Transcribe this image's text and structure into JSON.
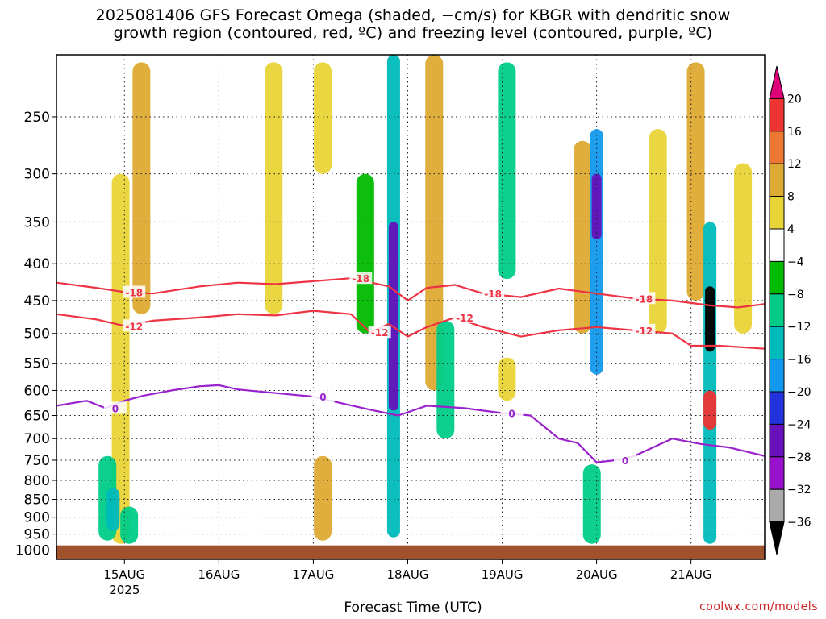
{
  "title": {
    "line1": "2025081406 GFS Forecast Omega (shaded, −cm/s) for KBGR with dendritic snow",
    "line2": "growth region (contoured, red, ºC) and freezing level (contoured, purple, ºC)"
  },
  "credit": "coolwx.com/models",
  "chart_data": {
    "type": "heatmap",
    "title": "2025081406 GFS Forecast Omega (shaded, −cm/s) for KBGR with dendritic snow growth region (contoured, red, ºC) and freezing level (contoured, purple, ºC)",
    "xlabel": "Forecast Time (UTC)",
    "ylabel": "",
    "x_ticks": [
      "15AUG",
      "16AUG",
      "17AUG",
      "18AUG",
      "19AUG",
      "20AUG",
      "21AUG"
    ],
    "x_tick_year": "2025",
    "x_range_days": [
      -0.72,
      6.78
    ],
    "y_ticks": [
      250,
      300,
      350,
      400,
      450,
      500,
      550,
      600,
      650,
      700,
      750,
      800,
      850,
      900,
      950,
      1000
    ],
    "y_range_hpa": [
      1030,
      205
    ],
    "y_scale": "log-pressure",
    "grid": true,
    "colorbar": {
      "labels": [
        "20",
        "16",
        "12",
        "8",
        "4",
        "−4",
        "−8",
        "−12",
        "−16",
        "−20",
        "−24",
        "−28",
        "−32",
        "−36"
      ],
      "colors": [
        "#dd0077",
        "#ee3333",
        "#ee7733",
        "#ddaa33",
        "#e8d437",
        "#ffffff",
        "#00bb00",
        "#00cc88",
        "#00bbbb",
        "#1199ee",
        "#2233dd",
        "#6611bb",
        "#9911cc",
        "#aaaaaa",
        "#000000"
      ]
    },
    "ground_color": "#a0522d",
    "omega_features": [
      {
        "t": -0.04,
        "p0": 300,
        "p1": 980,
        "v": 6
      },
      {
        "t": 0.18,
        "p0": 210,
        "p1": 470,
        "v": 8
      },
      {
        "t": -0.18,
        "p0": 740,
        "p1": 970,
        "v": -10
      },
      {
        "t": -0.12,
        "p0": 820,
        "p1": 940,
        "v": -14
      },
      {
        "t": 0.05,
        "p0": 870,
        "p1": 980,
        "v": -8
      },
      {
        "t": 1.58,
        "p0": 210,
        "p1": 470,
        "v": 5
      },
      {
        "t": 2.1,
        "p0": 740,
        "p1": 970,
        "v": 8
      },
      {
        "t": 2.1,
        "p0": 210,
        "p1": 300,
        "v": 5
      },
      {
        "t": 2.55,
        "p0": 300,
        "p1": 500,
        "v": -7
      },
      {
        "t": 2.85,
        "p0": 205,
        "p1": 960,
        "v": -14
      },
      {
        "t": 2.85,
        "p0": 350,
        "p1": 640,
        "v": -24
      },
      {
        "t": 3.28,
        "p0": 205,
        "p1": 600,
        "v": 10
      },
      {
        "t": 3.4,
        "p0": 480,
        "p1": 700,
        "v": -8
      },
      {
        "t": 4.05,
        "p0": 210,
        "p1": 420,
        "v": -8
      },
      {
        "t": 4.05,
        "p0": 540,
        "p1": 620,
        "v": 6
      },
      {
        "t": 4.85,
        "p0": 270,
        "p1": 500,
        "v": 8
      },
      {
        "t": 5.0,
        "p0": 260,
        "p1": 570,
        "v": -16
      },
      {
        "t": 5.0,
        "p0": 300,
        "p1": 370,
        "v": -26
      },
      {
        "t": 4.95,
        "p0": 760,
        "p1": 980,
        "v": -8
      },
      {
        "t": 5.65,
        "p0": 260,
        "p1": 500,
        "v": 6
      },
      {
        "t": 6.05,
        "p0": 210,
        "p1": 450,
        "v": 8
      },
      {
        "t": 6.2,
        "p0": 350,
        "p1": 980,
        "v": -12
      },
      {
        "t": 6.2,
        "p0": 430,
        "p1": 530,
        "v": -36
      },
      {
        "t": 6.2,
        "p0": 600,
        "p1": 680,
        "v": 18
      },
      {
        "t": 6.55,
        "p0": 290,
        "p1": 500,
        "v": 6
      }
    ],
    "contours": [
      {
        "label": "-18",
        "color": "#ee3344",
        "x": [
          -0.72,
          -0.3,
          0.0,
          0.3,
          0.8,
          1.2,
          1.6,
          2.0,
          2.4,
          2.8,
          3.0,
          3.2,
          3.5,
          3.8,
          4.2,
          4.6,
          5.0,
          5.4,
          5.8,
          6.2,
          6.5,
          6.78
        ],
        "y": [
          425,
          432,
          438,
          440,
          430,
          425,
          427,
          423,
          419,
          430,
          450,
          432,
          428,
          440,
          445,
          433,
          440,
          447,
          450,
          457,
          460,
          455
        ]
      },
      {
        "label": "-12",
        "color": "#ee3344",
        "x": [
          -0.72,
          -0.3,
          0.0,
          0.3,
          0.8,
          1.2,
          1.6,
          2.0,
          2.4,
          2.6,
          2.8,
          3.0,
          3.2,
          3.5,
          3.8,
          4.2,
          4.6,
          5.0,
          5.4,
          5.8,
          6.0,
          6.3,
          6.78
        ],
        "y": [
          470,
          478,
          488,
          480,
          475,
          470,
          472,
          465,
          470,
          498,
          485,
          505,
          490,
          475,
          490,
          505,
          495,
          490,
          495,
          500,
          520,
          520,
          525
        ]
      },
      {
        "label": "0",
        "color": "#9922cc",
        "x": [
          -0.72,
          -0.4,
          -0.2,
          0.0,
          0.2,
          0.5,
          0.8,
          1.0,
          1.2,
          1.6,
          2.0,
          2.3,
          2.6,
          2.9,
          3.2,
          3.6,
          4.0,
          4.3,
          4.6,
          4.8,
          5.0,
          5.2,
          5.4,
          5.8,
          6.1,
          6.4,
          6.78
        ],
        "y": [
          630,
          620,
          635,
          620,
          610,
          600,
          592,
          590,
          598,
          605,
          612,
          625,
          638,
          650,
          630,
          635,
          645,
          650,
          700,
          710,
          755,
          750,
          740,
          700,
          712,
          720,
          740
        ]
      }
    ]
  }
}
